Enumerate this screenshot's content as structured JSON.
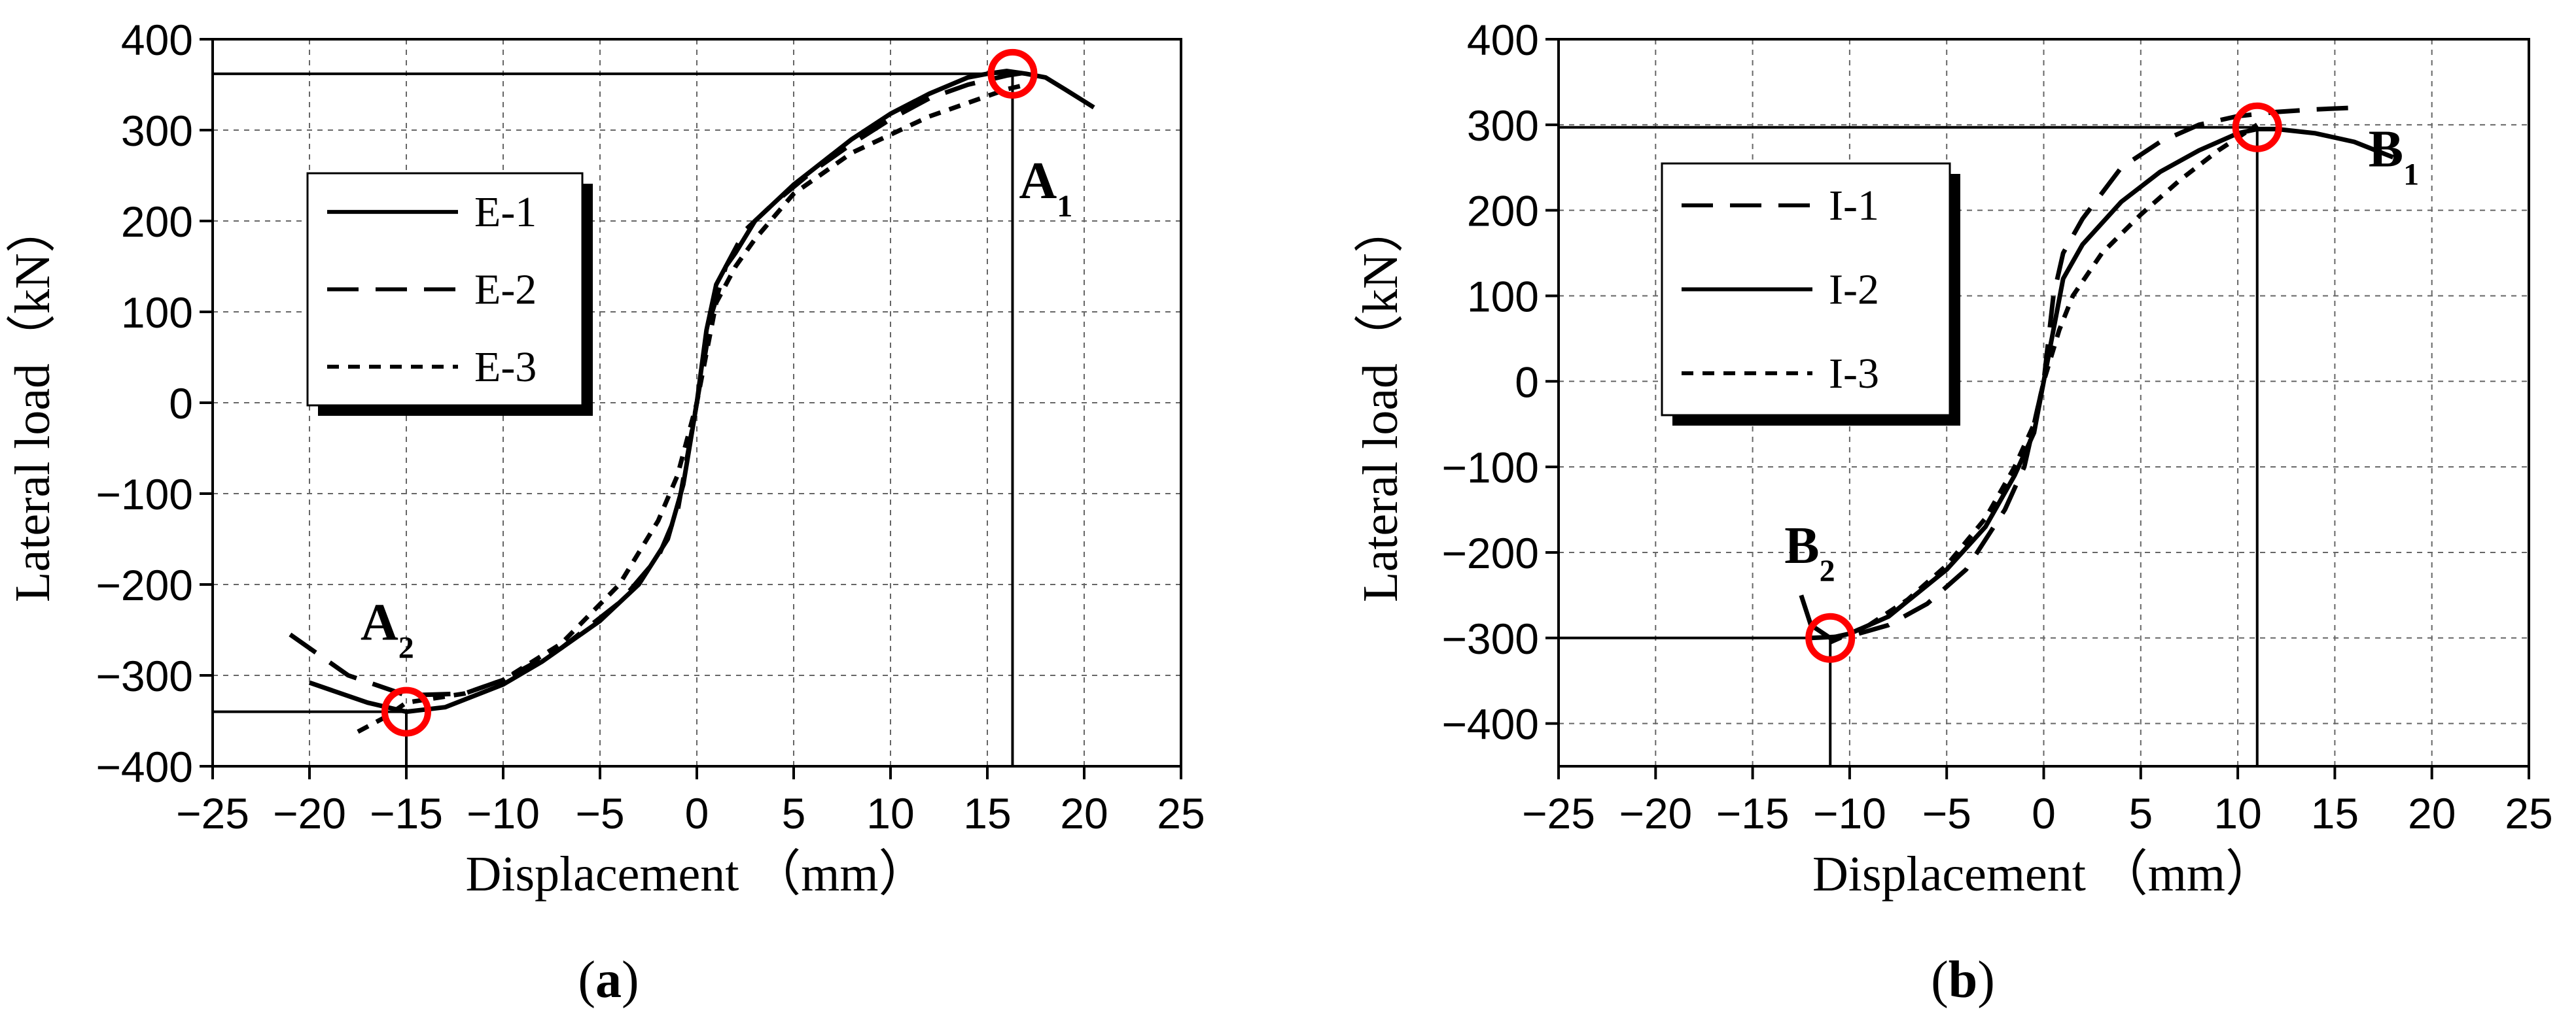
{
  "chart_data": [
    {
      "type": "line",
      "panel_label": "a",
      "xlabel": "Displacement  （mm）",
      "ylabel": "Lateral load（kN）",
      "xlim": [
        -25,
        25
      ],
      "ylim": [
        -400,
        400
      ],
      "x_ticks": [
        -25,
        -20,
        -15,
        -10,
        -5,
        0,
        5,
        10,
        15,
        20,
        25
      ],
      "y_ticks": [
        -400,
        -300,
        -200,
        -100,
        0,
        100,
        200,
        300,
        400
      ],
      "grid": true,
      "legend_position": "upper-left",
      "series": [
        {
          "name": "E-1",
          "style": "solid",
          "x": [
            -20,
            -17,
            -15,
            -13,
            -10,
            -8,
            -5,
            -3,
            -1.5,
            -0.7,
            0,
            0.5,
            1,
            1.5,
            2,
            3,
            5,
            8,
            10,
            12,
            14,
            15,
            16,
            17,
            18,
            19,
            20.5
          ],
          "y": [
            -308,
            -330,
            -340,
            -335,
            -310,
            -285,
            -240,
            -200,
            -150,
            -90,
            0,
            80,
            130,
            150,
            165,
            200,
            240,
            290,
            318,
            340,
            358,
            362,
            365,
            362,
            358,
            345,
            325
          ]
        },
        {
          "name": "E-2",
          "style": "dashed",
          "x": [
            -21,
            -18,
            -15,
            -12,
            -10,
            -7,
            -4,
            -2,
            -1,
            0,
            0.8,
            1.5,
            2.5,
            4,
            6,
            8,
            10,
            12,
            14,
            15,
            16,
            17.5
          ],
          "y": [
            -255,
            -300,
            -322,
            -320,
            -305,
            -270,
            -220,
            -170,
            -120,
            0,
            100,
            150,
            190,
            220,
            255,
            285,
            312,
            335,
            350,
            355,
            360,
            365
          ]
        },
        {
          "name": "E-3",
          "style": "short-dashed",
          "x": [
            -17.5,
            -16,
            -15,
            -12,
            -10,
            -7,
            -4,
            -2,
            -1,
            0,
            1,
            2,
            3,
            5,
            8,
            10,
            12,
            14,
            16,
            17
          ],
          "y": [
            -362,
            -345,
            -330,
            -320,
            -305,
            -265,
            -200,
            -130,
            -80,
            0,
            110,
            150,
            180,
            230,
            275,
            295,
            315,
            330,
            345,
            350
          ]
        }
      ],
      "markers": [
        {
          "label": "A",
          "subscript": "1",
          "x": 16.3,
          "y": 362
        },
        {
          "label": "A",
          "subscript": "2",
          "x": -15,
          "y": -340
        }
      ]
    },
    {
      "type": "line",
      "panel_label": "b",
      "xlabel": "Displacement  （mm）",
      "ylabel": "Lateral load（kN）",
      "xlim": [
        -25,
        25
      ],
      "ylim": [
        -450,
        400
      ],
      "x_ticks": [
        -25,
        -20,
        -15,
        -10,
        -5,
        0,
        5,
        10,
        15,
        20,
        25
      ],
      "y_ticks": [
        -400,
        -300,
        -200,
        -100,
        0,
        100,
        200,
        300,
        400
      ],
      "grid": true,
      "legend_position": "upper-left",
      "series": [
        {
          "name": "I-1",
          "style": "dashed",
          "x": [
            -12,
            -10,
            -8,
            -6,
            -4,
            -2,
            -1,
            0,
            0.5,
            1,
            2,
            4,
            6,
            8,
            10,
            12,
            14,
            16
          ],
          "y": [
            -300,
            -298,
            -285,
            -260,
            -220,
            -150,
            -100,
            0,
            100,
            150,
            190,
            250,
            280,
            300,
            310,
            315,
            318,
            320
          ]
        },
        {
          "name": "I-2",
          "style": "solid",
          "x": [
            -12.5,
            -12,
            -11,
            -10,
            -8,
            -5,
            -3,
            -1.5,
            -0.5,
            0,
            0.5,
            1,
            2,
            4,
            6,
            8,
            10,
            11,
            12,
            14,
            16,
            18
          ],
          "y": [
            -250,
            -285,
            -300,
            -295,
            -275,
            -220,
            -170,
            -110,
            -60,
            0,
            60,
            120,
            160,
            210,
            245,
            270,
            290,
            295,
            295,
            290,
            280,
            262
          ]
        },
        {
          "name": "I-3",
          "style": "short-dashed",
          "x": [
            -11,
            -9,
            -7,
            -5,
            -3,
            -1.5,
            -0.5,
            0,
            0.8,
            1.5,
            3,
            5,
            7,
            9,
            11
          ],
          "y": [
            -305,
            -285,
            -255,
            -215,
            -160,
            -100,
            -50,
            0,
            60,
            100,
            150,
            195,
            235,
            270,
            300
          ]
        }
      ],
      "markers": [
        {
          "label": "B",
          "subscript": "1",
          "x": 11,
          "y": 297
        },
        {
          "label": "B",
          "subscript": "2",
          "x": -11,
          "y": -300
        }
      ]
    }
  ]
}
